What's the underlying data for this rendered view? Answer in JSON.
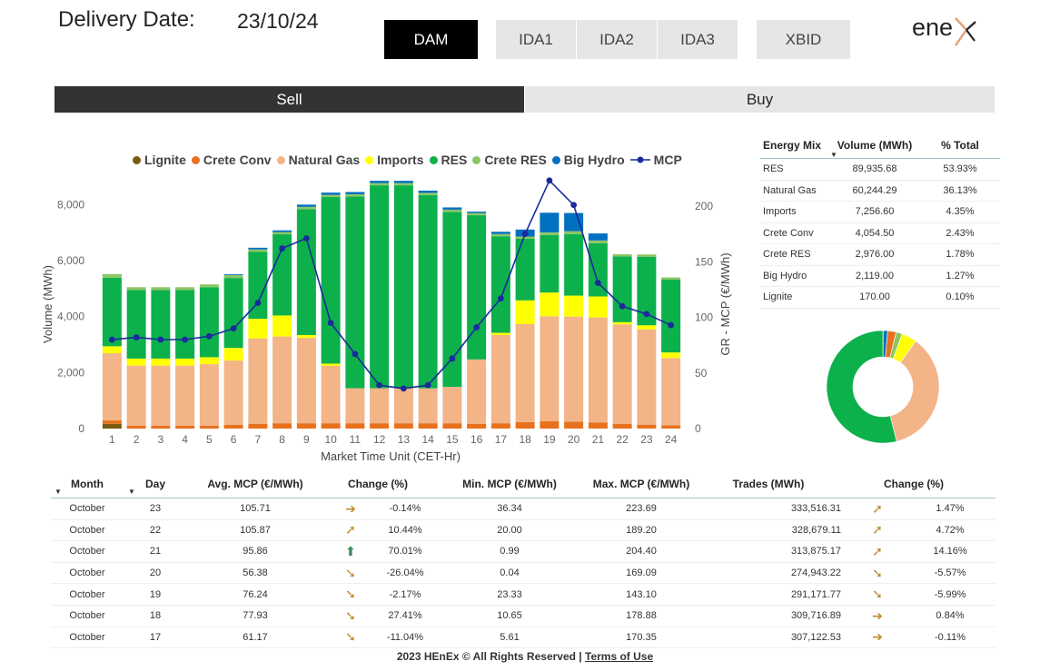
{
  "header": {
    "delivery_label": "Delivery Date:",
    "delivery_date": "23/10/24",
    "logo_text": "ene",
    "tabs": [
      {
        "label": "DAM",
        "active": true
      },
      {
        "label": "IDA1",
        "active": false
      },
      {
        "label": "IDA2",
        "active": false
      },
      {
        "label": "IDA3",
        "active": false
      },
      {
        "label": "XBID",
        "active": false
      }
    ]
  },
  "side_toggle": {
    "sell": "Sell",
    "buy": "Buy",
    "selected": "Sell"
  },
  "chart_data": {
    "type": "bar",
    "stacked": true,
    "secondary_line": "MCP",
    "xlabel": "Market Time Unit (CET-Hr)",
    "ylabel": "Volume (MWh)",
    "y2label": "GR - MCP (€/MWh)",
    "ylim": [
      0,
      8800
    ],
    "y2lim": [
      0,
      220
    ],
    "yticks": [
      "0",
      "2,000",
      "4,000",
      "6,000",
      "8,000"
    ],
    "y2ticks": [
      "0",
      "50",
      "100",
      "150",
      "200"
    ],
    "grid": false,
    "legend_position": "top",
    "categories": [
      "1",
      "2",
      "3",
      "4",
      "5",
      "6",
      "7",
      "8",
      "9",
      "10",
      "11",
      "12",
      "13",
      "14",
      "15",
      "16",
      "17",
      "18",
      "19",
      "20",
      "21",
      "22",
      "23",
      "24"
    ],
    "series": [
      {
        "name": "Lignite",
        "color": "#7a5a10",
        "values": [
          170,
          0,
          0,
          0,
          0,
          0,
          0,
          0,
          0,
          0,
          0,
          0,
          0,
          0,
          0,
          0,
          0,
          0,
          0,
          0,
          0,
          0,
          0,
          0
        ]
      },
      {
        "name": "Crete Conv",
        "color": "#e8711d",
        "values": [
          120,
          100,
          100,
          100,
          100,
          130,
          170,
          190,
          190,
          190,
          190,
          190,
          190,
          190,
          190,
          170,
          190,
          230,
          260,
          250,
          220,
          170,
          140,
          120
        ]
      },
      {
        "name": "Natural Gas",
        "color": "#f3b488",
        "values": [
          2400,
          2150,
          2150,
          2150,
          2200,
          2300,
          3050,
          3100,
          3050,
          2050,
          1250,
          1250,
          1250,
          1250,
          1300,
          2300,
          3150,
          3500,
          3750,
          3750,
          3750,
          3550,
          3400,
          2400
        ]
      },
      {
        "name": "Imports",
        "color": "#ffff00",
        "values": [
          250,
          250,
          250,
          250,
          250,
          450,
          700,
          750,
          100,
          80,
          0,
          0,
          0,
          0,
          0,
          0,
          80,
          850,
          850,
          750,
          750,
          80,
          150,
          200
        ]
      },
      {
        "name": "RES",
        "color": "#0db14b",
        "values": [
          2450,
          2450,
          2450,
          2450,
          2500,
          2500,
          2400,
          2900,
          4500,
          5950,
          6850,
          7250,
          7250,
          6900,
          6250,
          5150,
          3450,
          2200,
          2050,
          2200,
          1900,
          2350,
          2450,
          2600
        ]
      },
      {
        "name": "Crete RES",
        "color": "#8dc665",
        "values": [
          130,
          100,
          100,
          100,
          100,
          100,
          80,
          80,
          80,
          80,
          80,
          80,
          80,
          80,
          80,
          80,
          80,
          80,
          100,
          100,
          100,
          80,
          80,
          80
        ]
      },
      {
        "name": "Big Hydro",
        "color": "#0070c0",
        "values": [
          0,
          0,
          0,
          0,
          0,
          30,
          60,
          60,
          80,
          80,
          80,
          80,
          80,
          80,
          80,
          50,
          80,
          250,
          700,
          650,
          250,
          0,
          0,
          0
        ]
      }
    ],
    "mcp": {
      "name": "MCP",
      "color": "#1a2a9c",
      "values": [
        80,
        82,
        80,
        80,
        83,
        90,
        113,
        162,
        171,
        95,
        67,
        39,
        36,
        39,
        63,
        91,
        117,
        175,
        223,
        201,
        131,
        110,
        103,
        93
      ]
    }
  },
  "mix_table": {
    "headers": [
      "Energy Mix",
      "Volume (MWh)",
      "% Total"
    ],
    "rows": [
      [
        "RES",
        "89,935.68",
        "53.93%"
      ],
      [
        "Natural Gas",
        "60,244.29",
        "36.13%"
      ],
      [
        "Imports",
        "7,256.60",
        "4.35%"
      ],
      [
        "Crete Conv",
        "4,054.50",
        "2.43%"
      ],
      [
        "Crete RES",
        "2,976.00",
        "1.78%"
      ],
      [
        "Big Hydro",
        "2,119.00",
        "1.27%"
      ],
      [
        "Lignite",
        "170.00",
        "0.10%"
      ]
    ]
  },
  "donut": {
    "slices": [
      {
        "name": "RES",
        "value": 53.93,
        "color": "#0db14b"
      },
      {
        "name": "Natural Gas",
        "value": 36.13,
        "color": "#f3b488"
      },
      {
        "name": "Imports",
        "value": 4.35,
        "color": "#ffff00"
      },
      {
        "name": "Crete Conv",
        "value": 2.43,
        "color": "#e8711d"
      },
      {
        "name": "Crete RES",
        "value": 1.78,
        "color": "#8dc665"
      },
      {
        "name": "Big Hydro",
        "value": 1.27,
        "color": "#0070c0"
      },
      {
        "name": "Lignite",
        "value": 0.1,
        "color": "#7a5a10"
      }
    ]
  },
  "history_table": {
    "headers": [
      "Month",
      "Day",
      "Avg. MCP (€/MWh)",
      "Change (%)",
      "Min. MCP (€/MWh)",
      "Max. MCP (€/MWh)",
      "Trades (MWh)",
      "Change (%)"
    ],
    "rows": [
      {
        "month": "October",
        "day": "23",
        "avg": "105.71",
        "arrow1": "➔",
        "chg1": "-0.14%",
        "min": "36.34",
        "max": "223.69",
        "trades": "333,516.31",
        "arrow2": "➚",
        "chg2": "1.47%"
      },
      {
        "month": "October",
        "day": "22",
        "avg": "105.87",
        "arrow1": "➚",
        "chg1": "10.44%",
        "min": "20.00",
        "max": "189.20",
        "trades": "328,679.11",
        "arrow2": "➚",
        "chg2": "4.72%"
      },
      {
        "month": "October",
        "day": "21",
        "avg": "95.86",
        "arrow1": "⬆",
        "chg1": "70.01%",
        "min": "0.99",
        "max": "204.40",
        "trades": "313,875.17",
        "arrow2": "➚",
        "chg2": "14.16%"
      },
      {
        "month": "October",
        "day": "20",
        "avg": "56.38",
        "arrow1": "➘",
        "chg1": "-26.04%",
        "min": "0.04",
        "max": "169.09",
        "trades": "274,943.22",
        "arrow2": "➘",
        "chg2": "-5.57%"
      },
      {
        "month": "October",
        "day": "19",
        "avg": "76.24",
        "arrow1": "➘",
        "chg1": "-2.17%",
        "min": "23.33",
        "max": "143.10",
        "trades": "291,171.77",
        "arrow2": "➘",
        "chg2": "-5.99%"
      },
      {
        "month": "October",
        "day": "18",
        "avg": "77.93",
        "arrow1": "➘",
        "chg1": "27.41%",
        "min": "10.65",
        "max": "178.88",
        "trades": "309,716.89",
        "arrow2": "➔",
        "chg2": "0.84%"
      },
      {
        "month": "October",
        "day": "17",
        "avg": "61.17",
        "arrow1": "➘",
        "chg1": "-11.04%",
        "min": "5.61",
        "max": "170.35",
        "trades": "307,122.53",
        "arrow2": "➔",
        "chg2": "-0.11%"
      }
    ]
  },
  "footer": {
    "text": "2023 HEnEx © All Rights Reserved |",
    "link": "Terms of Use"
  }
}
